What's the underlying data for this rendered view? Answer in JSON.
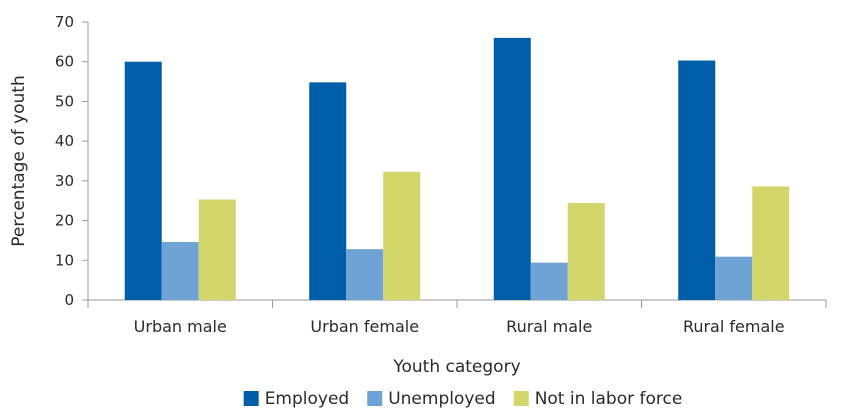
{
  "chart_data": {
    "type": "bar",
    "categories": [
      "Urban male",
      "Urban female",
      "Rural male",
      "Rural female"
    ],
    "series": [
      {
        "name": "Employed",
        "values": [
          60.0,
          54.8,
          66.0,
          60.3
        ],
        "color": "#005ea8"
      },
      {
        "name": "Unemployed",
        "values": [
          14.6,
          12.8,
          9.4,
          10.9
        ],
        "color": "#6fa3d6"
      },
      {
        "name": "Not in labor force",
        "values": [
          25.3,
          32.3,
          24.4,
          28.6
        ],
        "color": "#d2d56a"
      }
    ],
    "xlabel": "Youth category",
    "ylabel": "Percentage of youth",
    "ylim": [
      0,
      70
    ],
    "yticks": [
      0,
      10,
      20,
      30,
      40,
      50,
      60,
      70
    ],
    "grid": false,
    "legend_position": "bottom"
  }
}
